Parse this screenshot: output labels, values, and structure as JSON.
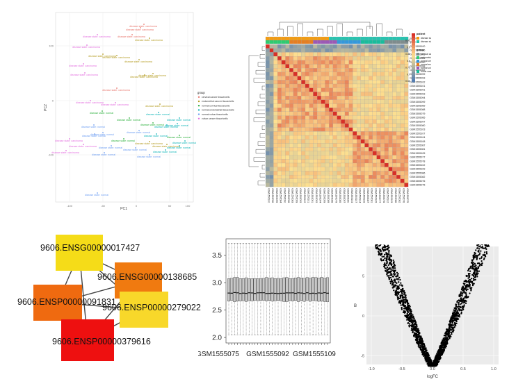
{
  "pca": {
    "xlabel": "PC1",
    "ylabel": "PC2",
    "xticks": [
      "-100",
      "-50",
      "0",
      "50",
      "100"
    ],
    "yticks": [
      "100",
      "0",
      "-100"
    ],
    "legend_title": "group",
    "groups": [
      {
        "name": "cervical cancer tissue/cells",
        "color": "#e8766d"
      },
      {
        "name": "endometrial cancer tissue/cells",
        "color": "#b49c22"
      },
      {
        "name": "normal cervical tissue/cells",
        "color": "#2fb13f"
      },
      {
        "name": "normal endometrial tissue/cells",
        "color": "#14b6b9"
      },
      {
        "name": "normal vulvar tissue/cells",
        "color": "#6f9ff2"
      },
      {
        "name": "vulvar cancer tissue/cells",
        "color": "#e36fdf"
      }
    ],
    "point_labels": {
      "carcinoma": "disease state: carcinoma",
      "normal": "disease state: normal"
    }
  },
  "heatmap": {
    "legend_patient_title": "patient",
    "patient_items": [
      {
        "name": "disease state: carcinoma",
        "color": "#f39c12"
      },
      {
        "name": "disease state: normal",
        "color": "#27c3b0"
      }
    ],
    "legend_group_title": "group",
    "group_items": [
      {
        "name": "cervical cancer tissue/cells",
        "color": "#7f8c8d"
      },
      {
        "name": "endometrial cancer tissue/cells",
        "color": "#2ecc71"
      },
      {
        "name": "normal cervical tissue/cells",
        "color": "#3498db"
      },
      {
        "name": "normal endometrial tissue/cells",
        "color": "#e67e22"
      },
      {
        "name": "normal vulvar tissue/cells",
        "color": "#9b59b6"
      },
      {
        "name": "vulvar cancer tissue/cells",
        "color": "#1abc9c"
      }
    ],
    "row_annotation_labels": [
      "patient",
      "group"
    ],
    "scale_labels": [
      "1",
      "0.95",
      "0.9",
      "0.85",
      "0.8",
      "0.75",
      "0.7",
      "0.65"
    ],
    "samples": [
      "GSM1555100",
      "GSM1555096",
      "GSM1555095",
      "GSM1555084",
      "GSM1555090",
      "GSM1555098",
      "GSM1555083",
      "GSM1555099",
      "GSM1555093",
      "GSM1555102",
      "GSM1555101",
      "GSM1555091",
      "GSM1555093",
      "GSM1555094",
      "GSM1555099",
      "GSM1555089",
      "GSM1555088",
      "GSM1555079",
      "GSM1555085",
      "GSM1555097",
      "GSM1555080",
      "GSM1555103",
      "GSM1555107",
      "GSM1555104",
      "GSM1555108",
      "GSM1555087",
      "GSM1555081",
      "GSM1555105",
      "GSM1555077",
      "GSM1555078",
      "GSM1555102",
      "GSM1555109",
      "GSM1555086",
      "GSM1555082",
      "GSM1555076",
      "GSM1555075"
    ]
  },
  "network": {
    "nodes": [
      {
        "label": "9606.ENSG00000017427",
        "color": "#f5dc18"
      },
      {
        "label": "9606.ENSG00000138685",
        "color": "#f07a10"
      },
      {
        "label": "9606.ENSP00000091831",
        "color": "#ef6a10"
      },
      {
        "label": "9606.ENSP00000279022",
        "color": "#f8d82a"
      },
      {
        "label": "9606.ENSP00000379616",
        "color": "#ee1010"
      }
    ]
  },
  "boxplot": {
    "yticks": [
      "3.5",
      "3.0",
      "2.5",
      "2.0"
    ],
    "xlabels": [
      "GSM1555075",
      "GSM1555092",
      "GSM1555109"
    ]
  },
  "volcano": {
    "xlabel": "logFC",
    "ylabel": "B",
    "xticks": [
      "-1.0",
      "-0.5",
      "0.0",
      "0.5",
      "1.0"
    ],
    "yticks": [
      "10",
      "5",
      "0",
      "-5"
    ]
  },
  "colors": {
    "heat_high": "#d73027",
    "heat_mid": "#fee090",
    "heat_low": "#4575b4",
    "box_fill": "#c8c8c8"
  }
}
